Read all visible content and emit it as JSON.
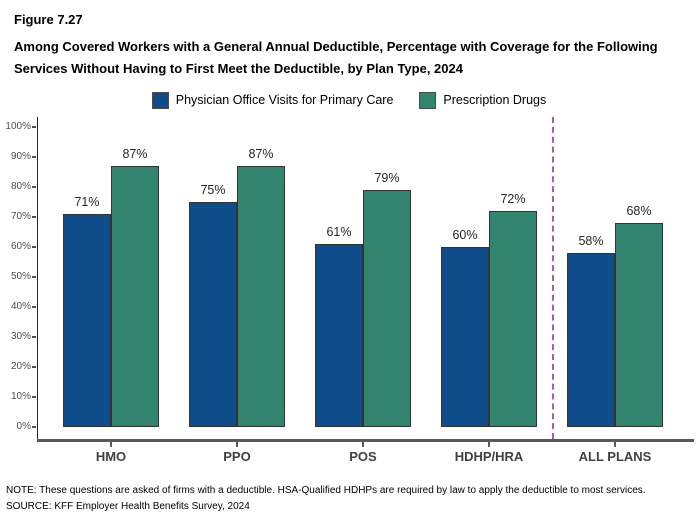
{
  "figure": {
    "number": "Figure 7.27",
    "title": "Among Covered Workers with a General Annual Deductible, Percentage with Coverage for the Following Services Without Having to First Meet the Deductible, by Plan Type, 2024"
  },
  "chart_data": {
    "type": "bar",
    "categories": [
      "HMO",
      "PPO",
      "POS",
      "HDHP/HRA",
      "ALL PLANS"
    ],
    "series": [
      {
        "name": "Physician Office Visits for Primary Care",
        "color": "#0E4D8A",
        "values": [
          71,
          75,
          61,
          60,
          58
        ]
      },
      {
        "name": "Prescription Drugs",
        "color": "#33846F",
        "values": [
          87,
          87,
          79,
          72,
          68
        ]
      }
    ],
    "value_suffix": "%",
    "ylim": [
      0,
      100
    ],
    "yticks": [
      "0%",
      "10%",
      "20%",
      "30%",
      "40%",
      "50%",
      "60%",
      "70%",
      "80%",
      "90%",
      "100%"
    ],
    "grid": false,
    "legend_position": "top",
    "separator": {
      "before_category": "ALL PLANS",
      "color": "#A85CB8",
      "style": "dashed"
    }
  },
  "notes": {
    "note": "NOTE: These questions are asked of firms with a deductible. HSA-Qualified HDHPs are required by law to apply the deductible to most services.",
    "source": "SOURCE: KFF Employer Health Benefits Survey, 2024"
  }
}
